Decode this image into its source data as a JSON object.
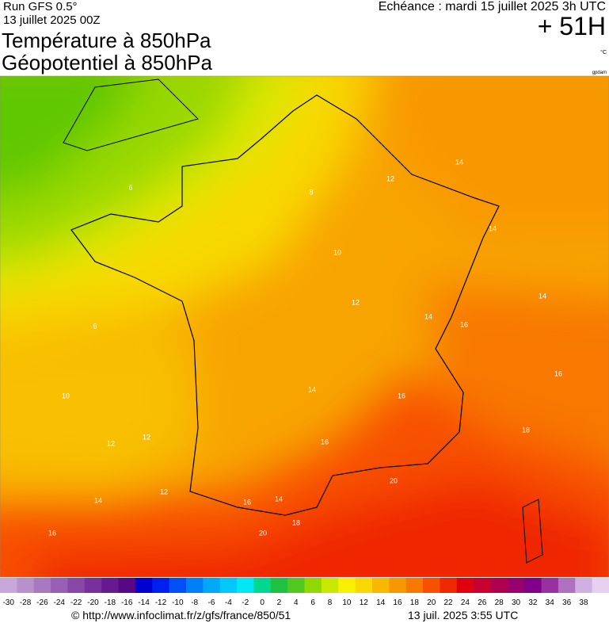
{
  "header": {
    "run": "Run GFS 0.5°",
    "date": "13 juillet 2025 00Z",
    "title1": "Température à 850hPa",
    "title2": "Géopotentiel à 850hPa",
    "echeance": "Echéance : mardi 15 juillet 2025 3h UTC",
    "lead": "+ 51H",
    "unit": "°C",
    "credit": "gpdam"
  },
  "contour_labels": [
    14,
    14,
    14,
    16,
    18,
    16,
    14,
    12,
    10,
    12,
    8,
    6,
    6,
    10,
    12,
    12,
    12,
    14,
    16,
    20,
    18,
    14,
    16,
    20,
    16,
    14,
    16
  ],
  "colorbar": {
    "ticks": [
      -30,
      -28,
      -26,
      -24,
      -22,
      -20,
      -18,
      -16,
      -14,
      -12,
      -10,
      -8,
      -6,
      -4,
      -2,
      0,
      2,
      4,
      6,
      8,
      10,
      12,
      14,
      16,
      18,
      20,
      22,
      24,
      26,
      28,
      30,
      32,
      34,
      36,
      38
    ],
    "colors": [
      "#c8a8d8",
      "#b890cc",
      "#a878c0",
      "#9860b4",
      "#8848a8",
      "#78309c",
      "#681890",
      "#580884",
      "#0000d0",
      "#0020f0",
      "#0050f8",
      "#0080f8",
      "#00a8f8",
      "#00c8f8",
      "#00e8f8",
      "#00d890",
      "#20c040",
      "#50c820",
      "#90d800",
      "#c8e800",
      "#f8f000",
      "#f8d800",
      "#f8b800",
      "#f89800",
      "#f87800",
      "#f85000",
      "#f02800",
      "#e00010",
      "#c80030",
      "#b00050",
      "#980070",
      "#800088",
      "#9830a0",
      "#b070c0",
      "#d0b0e0",
      "#e8d0f0"
    ]
  },
  "footer": {
    "url": "© http://www.infoclimat.fr/z/gfs/france/850/51",
    "time": "13 juil. 2025  3:55 UTC"
  }
}
